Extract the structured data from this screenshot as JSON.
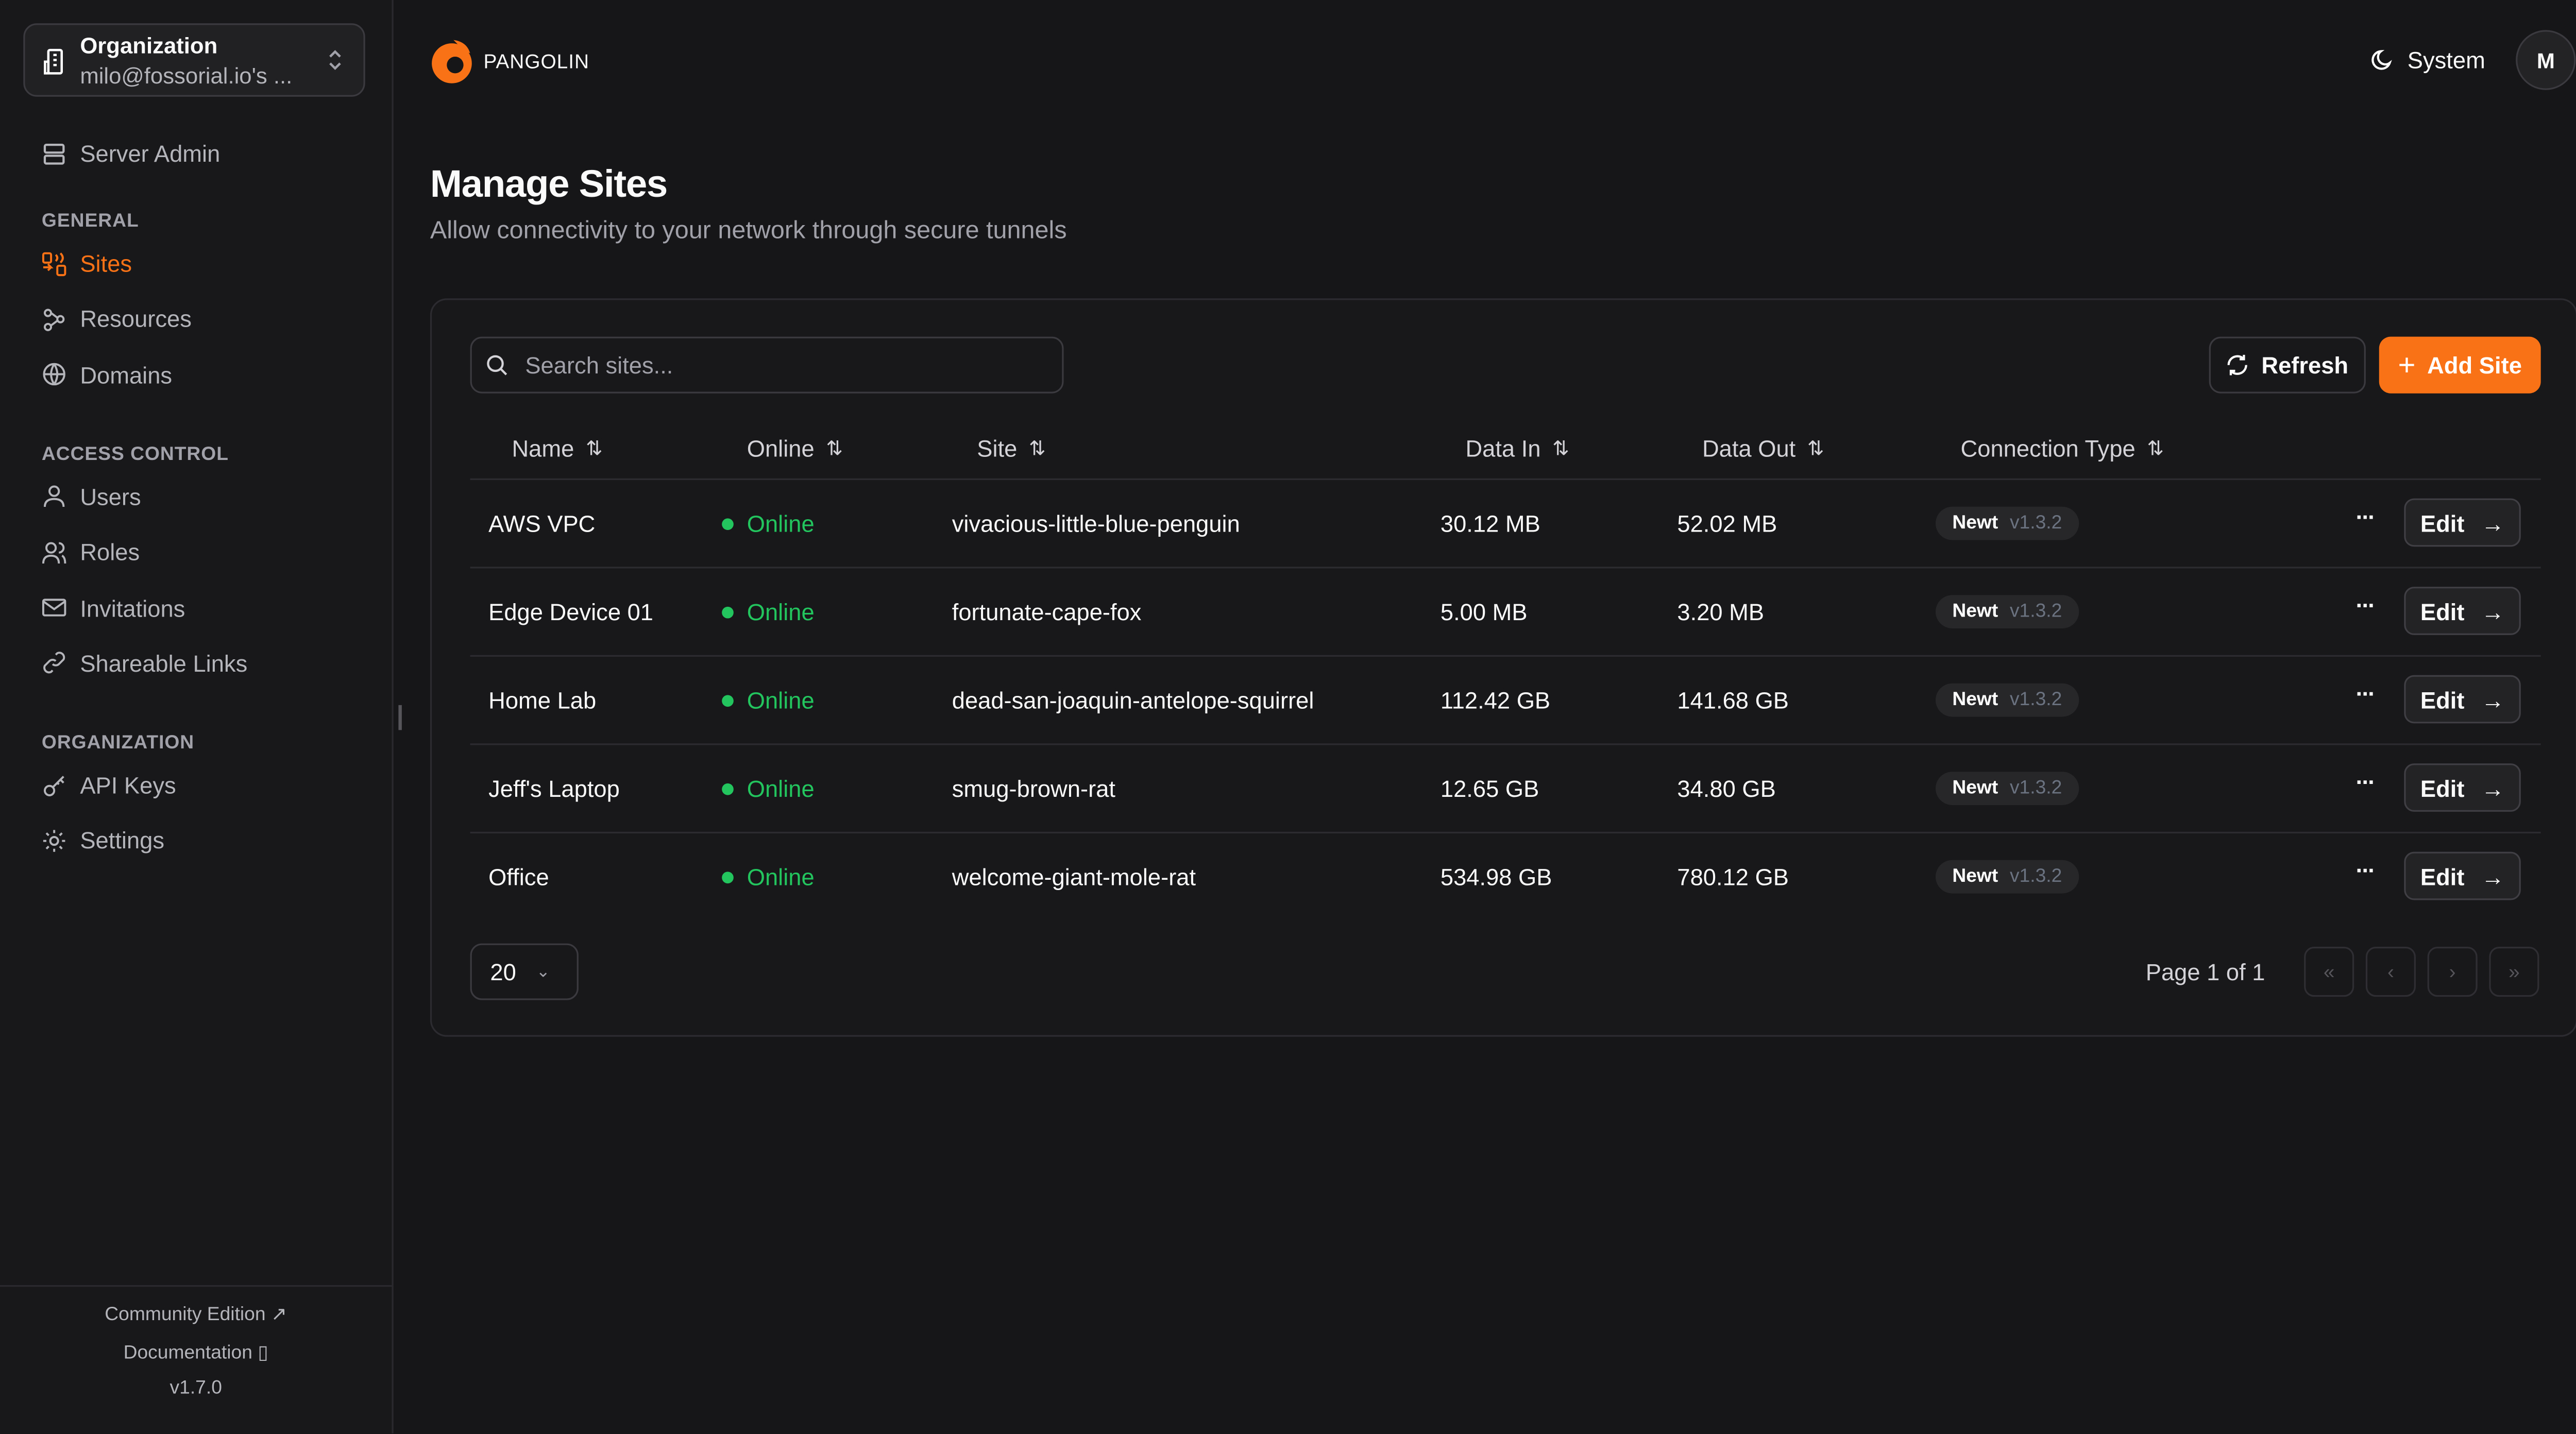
{
  "colors": {
    "accent": "#f97316",
    "online": "#22c55e",
    "background": "#161618"
  },
  "org": {
    "label": "Organization",
    "name": "milo@fossorial.io's ..."
  },
  "sidebar": {
    "server_admin": "Server Admin",
    "sections": [
      {
        "title": "GENERAL",
        "items": [
          {
            "label": "Sites",
            "icon": "sites-icon",
            "active": true
          },
          {
            "label": "Resources",
            "icon": "waypoints-icon"
          },
          {
            "label": "Domains",
            "icon": "globe-icon"
          }
        ]
      },
      {
        "title": "ACCESS CONTROL",
        "items": [
          {
            "label": "Users",
            "icon": "user-icon"
          },
          {
            "label": "Roles",
            "icon": "users-icon"
          },
          {
            "label": "Invitations",
            "icon": "mail-icon"
          },
          {
            "label": "Shareable Links",
            "icon": "link-icon"
          }
        ]
      },
      {
        "title": "ORGANIZATION",
        "items": [
          {
            "label": "API Keys",
            "icon": "key-icon"
          },
          {
            "label": "Settings",
            "icon": "gear-icon"
          }
        ]
      }
    ],
    "footer": {
      "edition": "Community Edition",
      "docs": "Documentation",
      "version": "v1.7.0"
    }
  },
  "header": {
    "brand": "PANGOLIN",
    "theme": "System",
    "avatar": "M"
  },
  "page": {
    "title": "Manage Sites",
    "subtitle": "Allow connectivity to your network through secure tunnels"
  },
  "toolbar": {
    "search_placeholder": "Search sites...",
    "refresh": "Refresh",
    "add": "Add Site"
  },
  "table": {
    "columns": [
      "Name",
      "Online",
      "Site",
      "Data In",
      "Data Out",
      "Connection Type"
    ],
    "rows": [
      {
        "name": "AWS VPC",
        "online": "Online",
        "site": "vivacious-little-blue-penguin",
        "in": "30.12 MB",
        "out": "52.02 MB",
        "type": "Newt",
        "ver": "v1.3.2",
        "edit": "Edit"
      },
      {
        "name": "Edge Device 01",
        "online": "Online",
        "site": "fortunate-cape-fox",
        "in": "5.00 MB",
        "out": "3.20 MB",
        "type": "Newt",
        "ver": "v1.3.2",
        "edit": "Edit"
      },
      {
        "name": "Home Lab",
        "online": "Online",
        "site": "dead-san-joaquin-antelope-squirrel",
        "in": "112.42 GB",
        "out": "141.68 GB",
        "type": "Newt",
        "ver": "v1.3.2",
        "edit": "Edit"
      },
      {
        "name": "Jeff's Laptop",
        "online": "Online",
        "site": "smug-brown-rat",
        "in": "12.65 GB",
        "out": "34.80 GB",
        "type": "Newt",
        "ver": "v1.3.2",
        "edit": "Edit"
      },
      {
        "name": "Office",
        "online": "Online",
        "site": "welcome-giant-mole-rat",
        "in": "534.98 GB",
        "out": "780.12 GB",
        "type": "Newt",
        "ver": "v1.3.2",
        "edit": "Edit"
      }
    ]
  },
  "pagination": {
    "page_size": "20",
    "info": "Page 1 of 1"
  }
}
